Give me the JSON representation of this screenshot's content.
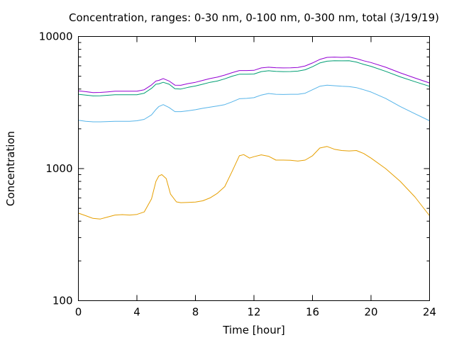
{
  "chart_data": {
    "type": "line",
    "title": "Concentration, ranges: 0-30 nm, 0-100 nm, 0-300 nm, total (3/19/19)",
    "xlabel": "Time [hour]",
    "ylabel": "Concentration",
    "xlim": [
      0,
      24
    ],
    "ylim": [
      100,
      10000
    ],
    "yscale": "log",
    "grid": false,
    "legend": "none",
    "x_ticks": [
      0,
      4,
      8,
      12,
      16,
      20,
      24
    ],
    "x_tick_labels": [
      "0",
      "4",
      "8",
      "12",
      "16",
      "20",
      "24"
    ],
    "y_ticks": [
      100,
      1000,
      10000
    ],
    "y_tick_labels": [
      "100",
      "1000",
      "10000"
    ],
    "series": [
      {
        "color": "#e69f00",
        "points": [
          [
            0,
            460
          ],
          [
            0.5,
            440
          ],
          [
            1,
            420
          ],
          [
            1.5,
            415
          ],
          [
            2,
            430
          ],
          [
            2.5,
            445
          ],
          [
            3,
            448
          ],
          [
            3.5,
            445
          ],
          [
            4,
            450
          ],
          [
            4.5,
            470
          ],
          [
            5,
            590
          ],
          [
            5.3,
            800
          ],
          [
            5.5,
            880
          ],
          [
            5.7,
            900
          ],
          [
            6,
            840
          ],
          [
            6.3,
            640
          ],
          [
            6.7,
            560
          ],
          [
            7,
            552
          ],
          [
            7.5,
            555
          ],
          [
            8,
            558
          ],
          [
            8.5,
            570
          ],
          [
            9,
            600
          ],
          [
            9.5,
            650
          ],
          [
            10,
            730
          ],
          [
            10.5,
            950
          ],
          [
            11,
            1250
          ],
          [
            11.3,
            1275
          ],
          [
            11.7,
            1200
          ],
          [
            12,
            1230
          ],
          [
            12.5,
            1270
          ],
          [
            13,
            1240
          ],
          [
            13.5,
            1160
          ],
          [
            14,
            1160
          ],
          [
            14.5,
            1155
          ],
          [
            15,
            1140
          ],
          [
            15.5,
            1160
          ],
          [
            16,
            1250
          ],
          [
            16.5,
            1430
          ],
          [
            17,
            1470
          ],
          [
            17.5,
            1400
          ],
          [
            18,
            1370
          ],
          [
            18.5,
            1360
          ],
          [
            19,
            1370
          ],
          [
            19.5,
            1300
          ],
          [
            20,
            1200
          ],
          [
            21,
            1000
          ],
          [
            22,
            800
          ],
          [
            23,
            610
          ],
          [
            24,
            440
          ]
        ]
      },
      {
        "color": "#56b4e9",
        "points": [
          [
            0,
            2320
          ],
          [
            0.5,
            2280
          ],
          [
            1,
            2260
          ],
          [
            1.5,
            2260
          ],
          [
            2,
            2270
          ],
          [
            2.5,
            2280
          ],
          [
            3,
            2280
          ],
          [
            3.5,
            2280
          ],
          [
            4,
            2300
          ],
          [
            4.5,
            2360
          ],
          [
            5,
            2550
          ],
          [
            5.3,
            2800
          ],
          [
            5.5,
            2950
          ],
          [
            5.8,
            3050
          ],
          [
            6.2,
            2900
          ],
          [
            6.6,
            2700
          ],
          [
            7,
            2700
          ],
          [
            7.5,
            2740
          ],
          [
            8,
            2790
          ],
          [
            8.5,
            2860
          ],
          [
            9,
            2920
          ],
          [
            9.5,
            2980
          ],
          [
            10,
            3050
          ],
          [
            10.5,
            3200
          ],
          [
            11,
            3380
          ],
          [
            11.5,
            3400
          ],
          [
            12,
            3440
          ],
          [
            12.5,
            3600
          ],
          [
            13,
            3700
          ],
          [
            13.5,
            3650
          ],
          [
            14,
            3640
          ],
          [
            14.5,
            3650
          ],
          [
            15,
            3650
          ],
          [
            15.5,
            3720
          ],
          [
            16,
            3950
          ],
          [
            16.5,
            4200
          ],
          [
            17,
            4280
          ],
          [
            17.5,
            4240
          ],
          [
            18,
            4200
          ],
          [
            18.5,
            4180
          ],
          [
            19,
            4100
          ],
          [
            19.5,
            3950
          ],
          [
            20,
            3800
          ],
          [
            21,
            3400
          ],
          [
            22,
            2950
          ],
          [
            23,
            2600
          ],
          [
            24,
            2300
          ]
        ]
      },
      {
        "color": "#009e73",
        "points": [
          [
            0,
            3650
          ],
          [
            0.5,
            3600
          ],
          [
            1,
            3550
          ],
          [
            1.5,
            3560
          ],
          [
            2,
            3590
          ],
          [
            2.5,
            3620
          ],
          [
            3,
            3620
          ],
          [
            3.5,
            3620
          ],
          [
            4,
            3620
          ],
          [
            4.5,
            3720
          ],
          [
            5,
            4050
          ],
          [
            5.3,
            4350
          ],
          [
            5.5,
            4380
          ],
          [
            5.8,
            4500
          ],
          [
            6.2,
            4350
          ],
          [
            6.6,
            4020
          ],
          [
            7,
            4000
          ],
          [
            7.5,
            4120
          ],
          [
            8,
            4220
          ],
          [
            8.5,
            4350
          ],
          [
            9,
            4500
          ],
          [
            9.5,
            4600
          ],
          [
            10,
            4780
          ],
          [
            10.5,
            5000
          ],
          [
            11,
            5180
          ],
          [
            11.5,
            5180
          ],
          [
            12,
            5200
          ],
          [
            12.5,
            5420
          ],
          [
            13,
            5500
          ],
          [
            13.5,
            5450
          ],
          [
            14,
            5420
          ],
          [
            14.5,
            5430
          ],
          [
            15,
            5470
          ],
          [
            15.5,
            5600
          ],
          [
            16,
            5900
          ],
          [
            16.5,
            6300
          ],
          [
            17,
            6500
          ],
          [
            17.5,
            6550
          ],
          [
            18,
            6540
          ],
          [
            18.5,
            6550
          ],
          [
            19,
            6400
          ],
          [
            19.5,
            6150
          ],
          [
            20,
            5950
          ],
          [
            21,
            5450
          ],
          [
            22,
            4950
          ],
          [
            23,
            4550
          ],
          [
            24,
            4200
          ]
        ]
      },
      {
        "color": "#9400d3",
        "points": [
          [
            0,
            3880
          ],
          [
            0.5,
            3820
          ],
          [
            1,
            3760
          ],
          [
            1.5,
            3770
          ],
          [
            2,
            3810
          ],
          [
            2.5,
            3850
          ],
          [
            3,
            3850
          ],
          [
            3.5,
            3850
          ],
          [
            4,
            3850
          ],
          [
            4.5,
            3950
          ],
          [
            5,
            4300
          ],
          [
            5.3,
            4600
          ],
          [
            5.5,
            4650
          ],
          [
            5.8,
            4800
          ],
          [
            6.2,
            4600
          ],
          [
            6.6,
            4280
          ],
          [
            7,
            4270
          ],
          [
            7.5,
            4400
          ],
          [
            8,
            4500
          ],
          [
            8.5,
            4650
          ],
          [
            9,
            4800
          ],
          [
            9.5,
            4920
          ],
          [
            10,
            5100
          ],
          [
            10.5,
            5320
          ],
          [
            11,
            5520
          ],
          [
            11.5,
            5520
          ],
          [
            12,
            5540
          ],
          [
            12.5,
            5780
          ],
          [
            13,
            5850
          ],
          [
            13.5,
            5800
          ],
          [
            14,
            5780
          ],
          [
            14.5,
            5790
          ],
          [
            15,
            5820
          ],
          [
            15.5,
            5980
          ],
          [
            16,
            6300
          ],
          [
            16.5,
            6700
          ],
          [
            17,
            6950
          ],
          [
            17.5,
            6980
          ],
          [
            18,
            6950
          ],
          [
            18.5,
            6980
          ],
          [
            19,
            6800
          ],
          [
            19.5,
            6550
          ],
          [
            20,
            6350
          ],
          [
            21,
            5850
          ],
          [
            22,
            5300
          ],
          [
            23,
            4850
          ],
          [
            24,
            4450
          ]
        ]
      }
    ]
  }
}
